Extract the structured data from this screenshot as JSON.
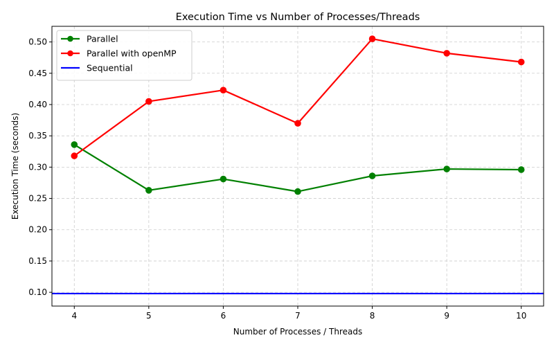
{
  "chart_data": {
    "type": "line",
    "title": "Execution Time vs Number of Processes/Threads",
    "xlabel": "Number of Processes / Threads",
    "ylabel": "Execution Time (seconds)",
    "x": [
      4,
      5,
      6,
      7,
      8,
      9,
      10
    ],
    "x_ticks": [
      "4",
      "5",
      "6",
      "7",
      "8",
      "9",
      "10"
    ],
    "y_ticks": [
      "0.10",
      "0.15",
      "0.20",
      "0.25",
      "0.30",
      "0.35",
      "0.40",
      "0.45",
      "0.50"
    ],
    "xlim": [
      3.7,
      10.3
    ],
    "ylim": [
      0.078,
      0.525
    ],
    "grid": true,
    "legend_position": "top-left",
    "series": [
      {
        "name": "Parallel",
        "color": "#008000",
        "marker": "circle",
        "values": [
          0.336,
          0.263,
          0.281,
          0.261,
          0.286,
          0.297,
          0.296
        ]
      },
      {
        "name": "Parallel with openMP",
        "color": "#ff0000",
        "marker": "circle",
        "values": [
          0.318,
          0.405,
          0.423,
          0.37,
          0.505,
          0.482,
          0.468
        ]
      },
      {
        "name": "Sequential",
        "color": "#0000ff",
        "marker": "none",
        "style": "horizontal-line",
        "value": 0.098
      }
    ]
  }
}
